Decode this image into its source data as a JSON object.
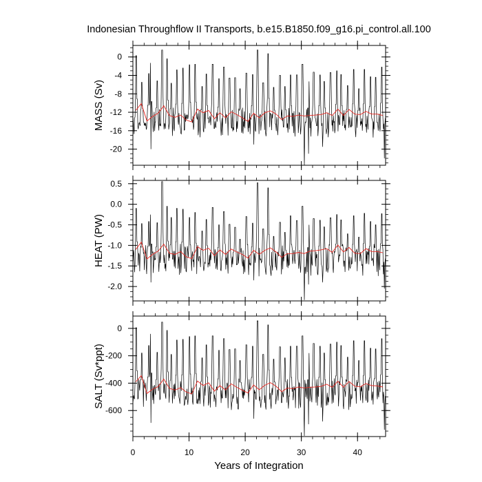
{
  "chart_data": {
    "title": "Indonesian Throughflow II Transports, b.e15.B1850.f09_g16.pi_control.all.100",
    "xlabel": "Years of Integration",
    "xlim": [
      0,
      45
    ],
    "x_ticks": [
      "0",
      "10",
      "20",
      "30",
      "40"
    ],
    "x_tick_values": [
      0,
      10,
      20,
      30,
      40
    ],
    "series_styles": [
      {
        "role": "monthly",
        "color": "#000000"
      },
      {
        "role": "annual_mean",
        "color": "#e8251f"
      }
    ],
    "panels": [
      {
        "type": "line",
        "ylabel": "MASS (Sv)",
        "ylim": [
          -23.5,
          2.5
        ],
        "y_ticks": [
          "0",
          "-4",
          "-8",
          "-12",
          "-16",
          "-20"
        ],
        "y_tick_values": [
          0,
          -4,
          -8,
          -12,
          -16,
          -20
        ],
        "annual_x": [
          0.5,
          1.5,
          2.5,
          3.5,
          4.5,
          5.5,
          6.5,
          7.5,
          8.5,
          9.5,
          10.5,
          11.5,
          12.5,
          13.5,
          14.5,
          15.5,
          16.5,
          17.5,
          18.5,
          19.5,
          20.5,
          21.5,
          22.5,
          23.5,
          24.5,
          25.5,
          26.5,
          27.5,
          28.5,
          29.5,
          30.5,
          31.5,
          32.5,
          33.5,
          34.5,
          35.5,
          36.5,
          37.5,
          38.5,
          39.5,
          40.5,
          41.5,
          42.5,
          43.5,
          44.5
        ],
        "annual_y": [
          -11.6,
          -10.1,
          -13.9,
          -12.9,
          -12.2,
          -10.6,
          -12.7,
          -13.1,
          -12.6,
          -13.7,
          -14.1,
          -11.3,
          -12.1,
          -11.6,
          -13.4,
          -12.1,
          -13.2,
          -11.9,
          -12.5,
          -13.2,
          -14.0,
          -12.2,
          -13.2,
          -12.1,
          -11.7,
          -12.4,
          -13.6,
          -12.8,
          -12.9,
          -12.6,
          -12.8,
          -12.7,
          -12.6,
          -12.5,
          -12.1,
          -12.7,
          -11.3,
          -12.7,
          -11.4,
          -12.4,
          -12.5,
          -11.8,
          -12.4,
          -12.4,
          -12.7
        ],
        "monthly": {
          "x_start": 0.0417,
          "x_step": 0.0833,
          "base": -14.2,
          "spread": 2.6,
          "peaks": [
            [
              0.6,
              0.3
            ],
            [
              1.6,
              -5.5
            ],
            [
              2.8,
              -3.6
            ],
            [
              3.2,
              -1.3
            ],
            [
              4.3,
              -5.2
            ],
            [
              5.2,
              1.5
            ],
            [
              6.1,
              -0.4
            ],
            [
              6.8,
              -5.7
            ],
            [
              7.8,
              -2.8
            ],
            [
              8.9,
              -2.4
            ],
            [
              10.1,
              -1.7
            ],
            [
              11.1,
              -1.6
            ],
            [
              12.3,
              -6.4
            ],
            [
              13.1,
              -3.7
            ],
            [
              14.2,
              -1.6
            ],
            [
              15.3,
              -4.7
            ],
            [
              16.2,
              -2.2
            ],
            [
              17.2,
              -4.6
            ],
            [
              18.2,
              -4.5
            ],
            [
              19.1,
              -6.9
            ],
            [
              20.2,
              -3.5
            ],
            [
              21.3,
              -3.8
            ],
            [
              22.2,
              1.5
            ],
            [
              23.2,
              -5.6
            ],
            [
              24.1,
              0.7
            ],
            [
              25.1,
              -6.6
            ],
            [
              26.2,
              -4.0
            ],
            [
              27.1,
              -6.4
            ],
            [
              28.1,
              -3.9
            ],
            [
              29.2,
              -3.9
            ],
            [
              30.2,
              -1.6
            ],
            [
              31.3,
              -5.3
            ],
            [
              32.2,
              -3.3
            ],
            [
              33.3,
              -3.9
            ],
            [
              34.1,
              -5.3
            ],
            [
              35.2,
              -3.4
            ],
            [
              36.3,
              -3.0
            ],
            [
              37.1,
              -3.8
            ],
            [
              38.2,
              -6.2
            ],
            [
              39.3,
              -2.7
            ],
            [
              40.2,
              -6.9
            ],
            [
              41.2,
              -2.7
            ],
            [
              42.3,
              -4.3
            ],
            [
              43.2,
              -4.4
            ],
            [
              44.3,
              -2.2
            ]
          ],
          "troughs": [
            [
              30.5,
              -23.5
            ],
            [
              44.8,
              -22.0
            ],
            [
              31.3,
              -21.0
            ],
            [
              3.2,
              -20.0
            ],
            [
              21.5,
              -19.0
            ],
            [
              33.8,
              -19.5
            ]
          ]
        }
      },
      {
        "type": "line",
        "ylabel": "HEAT (PW)",
        "ylim": [
          -2.35,
          0.58
        ],
        "y_ticks": [
          "0.5",
          "0.0",
          "-0.5",
          "-1.0",
          "-1.5",
          "-2.0"
        ],
        "y_tick_values": [
          0.5,
          0.0,
          -0.5,
          -1.0,
          -1.5,
          -2.0
        ],
        "annual_x": [
          0.5,
          1.5,
          2.5,
          3.5,
          4.5,
          5.5,
          6.5,
          7.5,
          8.5,
          9.5,
          10.5,
          11.5,
          12.5,
          13.5,
          14.5,
          15.5,
          16.5,
          17.5,
          18.5,
          19.5,
          20.5,
          21.5,
          22.5,
          23.5,
          24.5,
          25.5,
          26.5,
          27.5,
          28.5,
          29.5,
          30.5,
          31.5,
          32.5,
          33.5,
          34.5,
          35.5,
          36.5,
          37.5,
          38.5,
          39.5,
          40.5,
          41.5,
          42.5,
          43.5,
          44.5
        ],
        "annual_y": [
          -1.1,
          -0.92,
          -1.33,
          -1.22,
          -1.14,
          -0.97,
          -1.19,
          -1.22,
          -1.15,
          -1.28,
          -1.32,
          -1.03,
          -1.12,
          -1.07,
          -1.25,
          -1.11,
          -1.22,
          -1.09,
          -1.16,
          -1.22,
          -1.31,
          -1.12,
          -1.22,
          -1.12,
          -1.06,
          -1.16,
          -1.29,
          -1.2,
          -1.2,
          -1.17,
          -1.2,
          -1.14,
          -1.13,
          -1.11,
          -1.08,
          -1.17,
          -0.99,
          -1.16,
          -1.05,
          -1.19,
          -1.2,
          -1.08,
          -1.15,
          -1.15,
          -1.18
        ],
        "monthly": {
          "x_start": 0.0417,
          "x_step": 0.0833,
          "base": -1.35,
          "spread": 0.3,
          "peaks": [
            [
              0.6,
              -0.1
            ],
            [
              1.6,
              -0.47
            ],
            [
              2.8,
              -0.42
            ],
            [
              3.2,
              -0.25
            ],
            [
              4.3,
              -0.45
            ],
            [
              5.2,
              0.55
            ],
            [
              6.1,
              -0.05
            ],
            [
              6.8,
              -0.32
            ],
            [
              7.8,
              -0.1
            ],
            [
              8.9,
              -0.12
            ],
            [
              10.1,
              -0.32
            ],
            [
              11.1,
              -0.2
            ],
            [
              12.3,
              -0.65
            ],
            [
              13.1,
              -0.37
            ],
            [
              14.2,
              -0.08
            ],
            [
              15.3,
              -0.5
            ],
            [
              16.2,
              -0.18
            ],
            [
              17.2,
              -0.49
            ],
            [
              18.2,
              -0.56
            ],
            [
              19.1,
              -0.85
            ],
            [
              20.2,
              -0.3
            ],
            [
              21.3,
              -0.46
            ],
            [
              22.2,
              0.52
            ],
            [
              23.2,
              -0.6
            ],
            [
              24.1,
              0.4
            ],
            [
              25.1,
              -0.78
            ],
            [
              26.2,
              -0.44
            ],
            [
              27.1,
              -0.68
            ],
            [
              28.1,
              -0.28
            ],
            [
              29.2,
              -0.4
            ],
            [
              30.2,
              -0.05
            ],
            [
              31.3,
              -0.5
            ],
            [
              32.2,
              -0.35
            ],
            [
              33.3,
              -0.39
            ],
            [
              34.1,
              -0.55
            ],
            [
              35.2,
              -0.33
            ],
            [
              36.3,
              -0.25
            ],
            [
              37.1,
              -0.38
            ],
            [
              38.2,
              -0.72
            ],
            [
              39.3,
              -0.28
            ],
            [
              40.2,
              -0.8
            ],
            [
              41.2,
              -0.22
            ],
            [
              42.3,
              -0.42
            ],
            [
              43.2,
              -0.5
            ],
            [
              44.3,
              -0.23
            ]
          ],
          "troughs": [
            [
              30.5,
              -2.33
            ],
            [
              44.8,
              -2.05
            ],
            [
              31.3,
              -1.95
            ],
            [
              3.2,
              -1.9
            ],
            [
              21.5,
              -1.85
            ],
            [
              33.8,
              -1.9
            ]
          ]
        }
      },
      {
        "type": "line",
        "ylabel": "SALT (Sv*ppt)",
        "ylim": [
          -790,
          90
        ],
        "y_ticks": [
          "0",
          "-200",
          "-400",
          "-600"
        ],
        "y_tick_values": [
          0,
          -200,
          -400,
          -600
        ],
        "annual_x": [
          0.5,
          1.5,
          2.5,
          3.5,
          4.5,
          5.5,
          6.5,
          7.5,
          8.5,
          9.5,
          10.5,
          11.5,
          12.5,
          13.5,
          14.5,
          15.5,
          16.5,
          17.5,
          18.5,
          19.5,
          20.5,
          21.5,
          22.5,
          23.5,
          24.5,
          25.5,
          26.5,
          27.5,
          28.5,
          29.5,
          30.5,
          31.5,
          32.5,
          33.5,
          34.5,
          35.5,
          36.5,
          37.5,
          38.5,
          39.5,
          40.5,
          41.5,
          42.5,
          43.5,
          44.5
        ],
        "annual_y": [
          -390,
          -345,
          -475,
          -445,
          -425,
          -370,
          -438,
          -450,
          -433,
          -465,
          -478,
          -384,
          -417,
          -398,
          -458,
          -418,
          -450,
          -405,
          -430,
          -452,
          -472,
          -413,
          -448,
          -415,
          -397,
          -423,
          -462,
          -436,
          -440,
          -428,
          -435,
          -430,
          -428,
          -424,
          -408,
          -430,
          -386,
          -430,
          -388,
          -422,
          -427,
          -403,
          -418,
          -420,
          -428
        ],
        "monthly": {
          "x_start": 0.0417,
          "x_step": 0.0833,
          "base": -480,
          "spread": 90,
          "peaks": [
            [
              0.6,
              5
            ],
            [
              1.6,
              -180
            ],
            [
              2.8,
              -125
            ],
            [
              3.2,
              -40
            ],
            [
              4.3,
              -175
            ],
            [
              5.2,
              45
            ],
            [
              6.1,
              -15
            ],
            [
              6.8,
              -190
            ],
            [
              7.8,
              -85
            ],
            [
              8.9,
              -80
            ],
            [
              10.1,
              -60
            ],
            [
              11.1,
              -55
            ],
            [
              12.3,
              -215
            ],
            [
              13.1,
              -120
            ],
            [
              14.2,
              -55
            ],
            [
              15.3,
              -160
            ],
            [
              16.2,
              -75
            ],
            [
              17.2,
              -155
            ],
            [
              18.2,
              -150
            ],
            [
              19.1,
              -235
            ],
            [
              20.2,
              -120
            ],
            [
              21.3,
              -130
            ],
            [
              22.2,
              55
            ],
            [
              23.2,
              -190
            ],
            [
              24.1,
              25
            ],
            [
              25.1,
              -225
            ],
            [
              26.2,
              -135
            ],
            [
              27.1,
              -215
            ],
            [
              28.1,
              -130
            ],
            [
              29.2,
              -130
            ],
            [
              30.2,
              -55
            ],
            [
              31.3,
              -180
            ],
            [
              32.2,
              -110
            ],
            [
              33.3,
              -130
            ],
            [
              34.1,
              -180
            ],
            [
              35.2,
              -115
            ],
            [
              36.3,
              -100
            ],
            [
              37.1,
              -125
            ],
            [
              38.2,
              -210
            ],
            [
              39.3,
              -90
            ],
            [
              40.2,
              -235
            ],
            [
              41.2,
              -90
            ],
            [
              42.3,
              -145
            ],
            [
              43.2,
              -150
            ],
            [
              44.3,
              -75
            ]
          ],
          "troughs": [
            [
              30.5,
              -785
            ],
            [
              44.8,
              -740
            ],
            [
              31.3,
              -700
            ],
            [
              3.2,
              -690
            ],
            [
              21.5,
              -660
            ],
            [
              33.8,
              -680
            ]
          ]
        }
      }
    ]
  }
}
